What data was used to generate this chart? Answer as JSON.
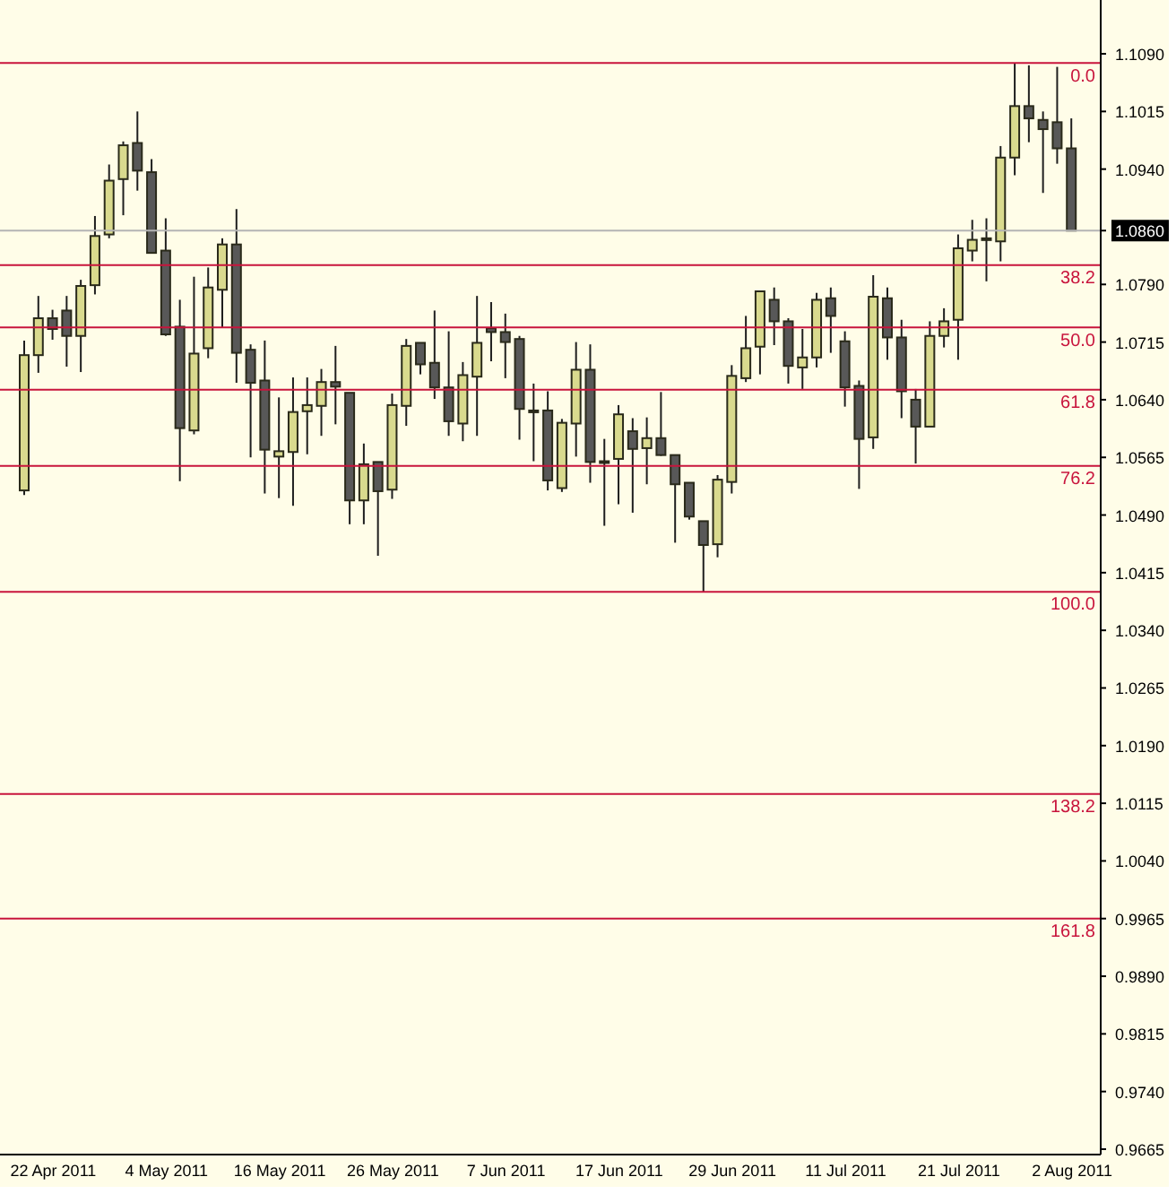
{
  "chart_data": {
    "type": "candlestick",
    "categories": [
      null,
      null,
      "22 Apr 2011",
      null,
      null,
      null,
      null,
      null,
      null,
      null,
      "4 May 2011",
      null,
      null,
      null,
      null,
      null,
      null,
      null,
      "16 May 2011",
      null,
      null,
      null,
      null,
      null,
      null,
      null,
      "26 May 2011",
      null,
      null,
      null,
      null,
      null,
      null,
      null,
      "7 Jun 2011",
      null,
      null,
      null,
      null,
      null,
      null,
      null,
      "17 Jun 2011",
      null,
      null,
      null,
      null,
      null,
      null,
      null,
      "29 Jun 2011",
      null,
      null,
      null,
      null,
      null,
      null,
      null,
      "11 Jul 2011",
      null,
      null,
      null,
      null,
      null,
      null,
      null,
      "21 Jul 2011",
      null,
      null,
      null,
      null,
      null,
      null,
      null,
      "2 Aug 2011"
    ],
    "ohlc": [
      [
        1.0522,
        1.0717,
        1.0516,
        1.0698
      ],
      [
        1.0698,
        1.0775,
        1.0675,
        1.0746
      ],
      [
        1.0746,
        1.0757,
        1.0718,
        1.0732
      ],
      [
        1.0756,
        1.0775,
        1.0683,
        1.0723
      ],
      [
        1.0723,
        1.0796,
        1.0676,
        1.0788
      ],
      [
        1.0789,
        1.0879,
        1.0777,
        1.0853
      ],
      [
        1.0855,
        1.0946,
        1.085,
        1.0925
      ],
      [
        1.0927,
        1.0976,
        1.088,
        1.0971
      ],
      [
        1.0974,
        1.1015,
        1.0912,
        1.0938
      ],
      [
        1.0936,
        1.0953,
        1.083,
        1.0831
      ],
      [
        1.0834,
        1.0876,
        1.0723,
        1.0725
      ],
      [
        1.0735,
        1.077,
        1.0534,
        1.0603
      ],
      [
        1.06,
        1.08,
        1.0595,
        1.07
      ],
      [
        1.0707,
        1.0812,
        1.0694,
        1.0786
      ],
      [
        1.0783,
        1.085,
        1.0734,
        1.0842
      ],
      [
        1.0842,
        1.0888,
        1.0662,
        1.0701
      ],
      [
        1.0705,
        1.0712,
        1.0565,
        1.0662
      ],
      [
        1.0665,
        1.0717,
        1.0518,
        1.0575
      ],
      [
        1.0566,
        1.0643,
        1.0512,
        1.0573
      ],
      [
        1.0572,
        1.0669,
        1.0502,
        1.0624
      ],
      [
        1.0625,
        1.0669,
        1.0569,
        1.0633
      ],
      [
        1.0632,
        1.068,
        1.0593,
        1.0663
      ],
      [
        1.0663,
        1.071,
        1.0608,
        1.0657
      ],
      [
        1.0649,
        1.0649,
        1.0478,
        1.0509
      ],
      [
        1.0509,
        1.0583,
        1.0478,
        1.0556
      ],
      [
        1.0559,
        1.0559,
        1.0437,
        1.0521
      ],
      [
        1.0523,
        1.0648,
        1.0511,
        1.0633
      ],
      [
        1.0632,
        1.0719,
        1.0606,
        1.071
      ],
      [
        1.0714,
        1.0714,
        1.0673,
        1.0686
      ],
      [
        1.0688,
        1.0756,
        1.0641,
        1.0656
      ],
      [
        1.0656,
        1.0729,
        1.0593,
        1.0612
      ],
      [
        1.0609,
        1.0689,
        1.0586,
        1.0672
      ],
      [
        1.067,
        1.0775,
        1.0593,
        1.0714
      ],
      [
        1.0733,
        1.0767,
        1.069,
        1.0728
      ],
      [
        1.0728,
        1.0752,
        1.0668,
        1.0715
      ],
      [
        1.0719,
        1.0723,
        1.0588,
        1.0628
      ],
      [
        1.0626,
        1.0661,
        1.056,
        1.0626
      ],
      [
        1.0626,
        1.0651,
        1.0522,
        1.0535
      ],
      [
        1.0525,
        1.0615,
        1.052,
        1.061
      ],
      [
        1.0609,
        1.0715,
        1.0566,
        1.0679
      ],
      [
        1.0679,
        1.0712,
        1.0532,
        1.0559
      ],
      [
        1.056,
        1.0589,
        1.0476,
        1.056
      ],
      [
        1.0563,
        1.0633,
        1.0504,
        1.0621
      ],
      [
        1.0599,
        1.0616,
        1.0493,
        1.0576
      ],
      [
        1.0577,
        1.0617,
        1.053,
        1.059
      ],
      [
        1.059,
        1.065,
        1.0567,
        1.0568
      ],
      [
        1.0568,
        1.0568,
        1.0454,
        1.053
      ],
      [
        1.0532,
        1.0532,
        1.0484,
        1.0488
      ],
      [
        1.0482,
        1.0482,
        1.039,
        1.0451
      ],
      [
        1.0452,
        1.0542,
        1.0435,
        1.0536
      ],
      [
        1.0533,
        1.0685,
        1.0518,
        1.0671
      ],
      [
        1.0668,
        1.0749,
        1.0663,
        1.0707
      ],
      [
        1.0709,
        1.0781,
        1.0673,
        1.0781
      ],
      [
        1.077,
        1.0786,
        1.0711,
        1.0742
      ],
      [
        1.0742,
        1.0746,
        1.0661,
        1.0684
      ],
      [
        1.0682,
        1.0732,
        1.0654,
        1.0695
      ],
      [
        1.0695,
        1.0779,
        1.0682,
        1.077
      ],
      [
        1.0772,
        1.0786,
        1.0701,
        1.0749
      ],
      [
        1.0716,
        1.0729,
        1.0631,
        1.0656
      ],
      [
        1.0658,
        1.0665,
        1.0524,
        1.0589
      ],
      [
        1.0591,
        1.0802,
        1.0576,
        1.0774
      ],
      [
        1.0772,
        1.0786,
        1.0692,
        1.0721
      ],
      [
        1.0721,
        1.0744,
        1.0616,
        1.0651
      ],
      [
        1.064,
        1.0654,
        1.0557,
        1.0605
      ],
      [
        1.0605,
        1.0742,
        1.0605,
        1.0723
      ],
      [
        1.0723,
        1.0759,
        1.0708,
        1.0742
      ],
      [
        1.0744,
        1.0855,
        1.0692,
        1.0837
      ],
      [
        1.0834,
        1.0874,
        1.082,
        1.0848
      ],
      [
        1.085,
        1.0876,
        1.0794,
        1.085
      ],
      [
        1.0846,
        1.097,
        1.082,
        1.0955
      ],
      [
        1.0955,
        1.1078,
        1.0932,
        1.1022
      ],
      [
        1.1022,
        1.1075,
        1.0975,
        1.1006
      ],
      [
        1.1004,
        1.1015,
        1.0909,
        1.0992
      ],
      [
        1.1001,
        1.1073,
        1.0947,
        1.0967
      ],
      [
        1.0967,
        1.1006,
        1.086,
        1.086
      ]
    ],
    "colors": [
      "#d9da8e",
      "#d9da8e",
      "#585858",
      "#585858",
      "#d9da8e",
      "#d9da8e",
      "#d9da8e",
      "#d9da8e",
      "#585858",
      "#585858",
      "#585858",
      "#585858",
      "#d9da8e",
      "#d9da8e",
      "#d9da8e",
      "#585858",
      "#585858",
      "#585858",
      "#d9da8e",
      "#d9da8e",
      "#d9da8e",
      "#d9da8e",
      "#585858",
      "#585858",
      "#d9da8e",
      "#585858",
      "#d9da8e",
      "#d9da8e",
      "#585858",
      "#585858",
      "#585858",
      "#d9da8e",
      "#d9da8e",
      "#585858",
      "#585858",
      "#585858",
      "#585858",
      "#585858",
      "#d9da8e",
      "#d9da8e",
      "#585858",
      "#585858",
      "#d9da8e",
      "#585858",
      "#d9da8e",
      "#585858",
      "#585858",
      "#585858",
      "#585858",
      "#d9da8e",
      "#d9da8e",
      "#d9da8e",
      "#d9da8e",
      "#585858",
      "#585858",
      "#d9da8e",
      "#d9da8e",
      "#585858",
      "#585858",
      "#585858",
      "#d9da8e",
      "#585858",
      "#585858",
      "#585858",
      "#d9da8e",
      "#d9da8e",
      "#d9da8e",
      "#d9da8e",
      "#585858",
      "#d9da8e",
      "#d9da8e",
      "#585858",
      "#585858",
      "#585858",
      "#585858"
    ],
    "ylim": [
      0.9658,
      1.116
    ],
    "yticks": [
      {
        "value": 1.109,
        "label": "1.1090"
      },
      {
        "value": 1.1015,
        "label": "1.1015"
      },
      {
        "value": 1.094,
        "label": "1.0940"
      },
      {
        "value": 1.086,
        "label": "1.0860"
      },
      {
        "value": 1.079,
        "label": "1.0790"
      },
      {
        "value": 1.0715,
        "label": "1.0715"
      },
      {
        "value": 1.064,
        "label": "1.0640"
      },
      {
        "value": 1.0565,
        "label": "1.0565"
      },
      {
        "value": 1.049,
        "label": "1.0490"
      },
      {
        "value": 1.0415,
        "label": "1.0415"
      },
      {
        "value": 1.034,
        "label": "1.0340"
      },
      {
        "value": 1.0265,
        "label": "1.0265"
      },
      {
        "value": 1.019,
        "label": "1.0190"
      },
      {
        "value": 1.0115,
        "label": "1.0115"
      },
      {
        "value": 1.004,
        "label": "1.0040"
      },
      {
        "value": 0.9965,
        "label": "0.9965"
      },
      {
        "value": 0.989,
        "label": "0.9890"
      },
      {
        "value": 0.9815,
        "label": "0.9815"
      },
      {
        "value": 0.974,
        "label": "0.9740"
      },
      {
        "value": 0.9665,
        "label": "0.9665"
      }
    ],
    "ref_lines": [
      {
        "axis": "y",
        "value": 1.086,
        "color": "#b4b4b4"
      },
      {
        "axis": "y",
        "value": 1.1078,
        "color": "#c8143c"
      },
      {
        "axis": "y",
        "value": 1.0815,
        "color": "#c8143c"
      },
      {
        "axis": "y",
        "value": 1.0734,
        "color": "#c8143c"
      },
      {
        "axis": "y",
        "value": 1.0653,
        "color": "#c8143c"
      },
      {
        "axis": "y",
        "value": 1.0554,
        "color": "#c8143c"
      },
      {
        "axis": "y",
        "value": 1.039,
        "color": "#c8143c"
      },
      {
        "axis": "y",
        "value": 1.0127,
        "color": "#c8143c"
      },
      {
        "axis": "y",
        "value": 0.9965,
        "color": "#c8143c"
      }
    ],
    "annotations": [
      {
        "text": "0.0",
        "y": 1.1078
      },
      {
        "text": "38.2",
        "y": 1.0815
      },
      {
        "text": "50.0",
        "y": 1.0734
      },
      {
        "text": "61.8",
        "y": 1.0653
      },
      {
        "text": "76.2",
        "y": 1.0554
      },
      {
        "text": "100.0",
        "y": 1.039
      },
      {
        "text": "138.2",
        "y": 1.0127
      },
      {
        "text": "161.8",
        "y": 0.9965
      }
    ]
  }
}
